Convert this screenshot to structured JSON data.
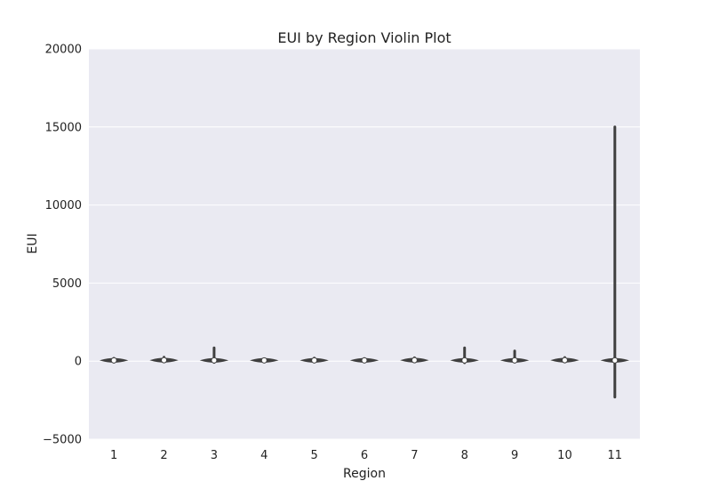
{
  "chart_data": {
    "type": "violin",
    "title": "EUI by Region Violin Plot",
    "xlabel": "Region",
    "ylabel": "EUI",
    "categories": [
      "1",
      "2",
      "3",
      "4",
      "5",
      "6",
      "7",
      "8",
      "9",
      "10",
      "11"
    ],
    "ylim": [
      -5000,
      20000
    ],
    "yticks": [
      -5000,
      0,
      5000,
      10000,
      15000,
      20000
    ],
    "ytick_labels": [
      "−5000",
      "0",
      "5000",
      "10000",
      "15000",
      "20000"
    ],
    "grid": true,
    "legend": "none",
    "violins": [
      {
        "region": "1",
        "min": -60,
        "max": 180,
        "median": 50
      },
      {
        "region": "2",
        "min": -40,
        "max": 250,
        "median": 60
      },
      {
        "region": "3",
        "min": -80,
        "max": 850,
        "median": 50
      },
      {
        "region": "4",
        "min": -30,
        "max": 130,
        "median": 50
      },
      {
        "region": "5",
        "min": -40,
        "max": 200,
        "median": 50
      },
      {
        "region": "6",
        "min": -30,
        "max": 170,
        "median": 50
      },
      {
        "region": "7",
        "min": -40,
        "max": 220,
        "median": 60
      },
      {
        "region": "8",
        "min": -100,
        "max": 850,
        "median": 50
      },
      {
        "region": "9",
        "min": -60,
        "max": 650,
        "median": 50
      },
      {
        "region": "10",
        "min": -50,
        "max": 230,
        "median": 60
      },
      {
        "region": "11",
        "min": -2300,
        "max": 15000,
        "median": 50
      }
    ],
    "colors": {
      "background": "#eaeaf2",
      "grid": "#ffffff",
      "violin_stroke": "#3f3f3f",
      "median_fill": "#ffffff"
    }
  }
}
